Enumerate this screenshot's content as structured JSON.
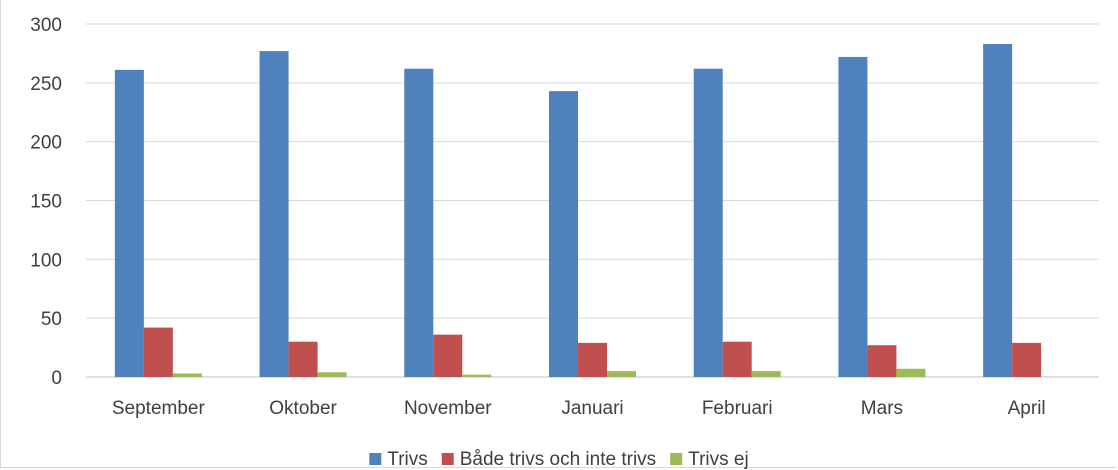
{
  "chart_data": {
    "type": "bar",
    "categories": [
      "September",
      "Oktober",
      "November",
      "Januari",
      "Februari",
      "Mars",
      "April"
    ],
    "series": [
      {
        "name": "Trivs",
        "color": "#4f81bd",
        "values": [
          261,
          277,
          262,
          243,
          262,
          272,
          283
        ]
      },
      {
        "name": "Både trivs och inte trivs",
        "color": "#c0504d",
        "values": [
          42,
          30,
          36,
          29,
          30,
          27,
          29
        ]
      },
      {
        "name": "Trivs ej",
        "color": "#9bbb59",
        "values": [
          3,
          4,
          2,
          5,
          5,
          7,
          0
        ]
      }
    ],
    "ylim": [
      0,
      300
    ],
    "yticks": [
      "0",
      "50",
      "100",
      "150",
      "200",
      "250",
      "300"
    ],
    "grid": true,
    "legend_position": "bottom",
    "title": "",
    "xlabel": "",
    "ylabel": ""
  }
}
